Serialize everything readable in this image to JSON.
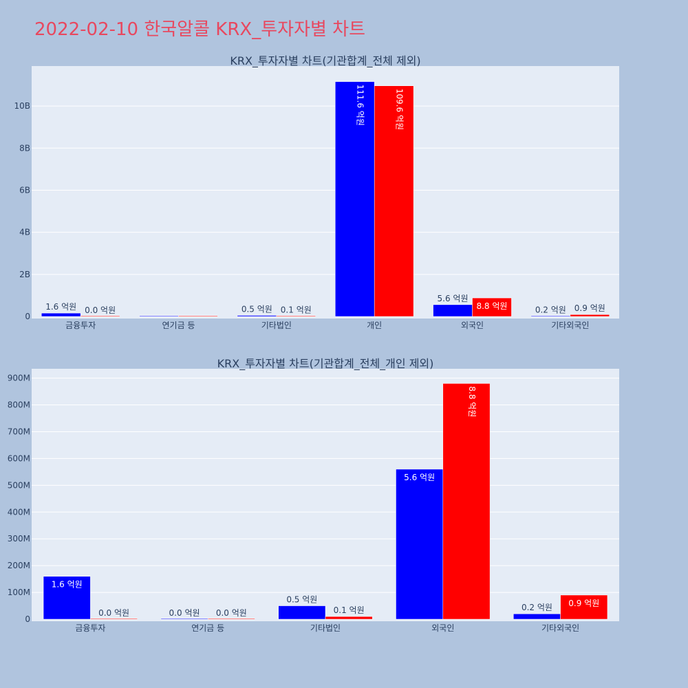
{
  "title": "2022-02-10 한국알콜 KRX_투자자별 차트",
  "colors": {
    "buy": "#0000ff",
    "sell": "#ff0000",
    "plot_bg": "#e5ecf6",
    "page_bg": "#b0c4de"
  },
  "chart_data": [
    {
      "type": "bar",
      "title": "KRX_투자자별 차트(기관합계_전체 제외)",
      "categories": [
        "금융투자",
        "연기금 등",
        "기타법인",
        "개인",
        "외국인",
        "기타외국인"
      ],
      "series": [
        {
          "color": "#0000ff",
          "values": [
            160000000,
            0,
            50000000,
            11160000000,
            560000000,
            20000000
          ],
          "labels": [
            "1.6 억원",
            "",
            "0.5 억원",
            "111.6 억원",
            "5.6 억원",
            "0.2 억원"
          ]
        },
        {
          "color": "#ff0000",
          "values": [
            0,
            0,
            10000000,
            10960000000,
            880000000,
            90000000
          ],
          "labels": [
            "0.0 억원",
            "",
            "0.1 억원",
            "109.6 억원",
            "8.8 억원",
            "0.9 억원"
          ]
        }
      ],
      "ylim": [
        0,
        11900000000
      ],
      "yticks": [
        0,
        2000000000,
        4000000000,
        6000000000,
        8000000000,
        10000000000
      ],
      "yticklabels": [
        "0",
        "2B",
        "4B",
        "6B",
        "8B",
        "10B"
      ]
    },
    {
      "type": "bar",
      "title": "KRX_투자자별 차트(기관합계_전체_개인 제외)",
      "categories": [
        "금융투자",
        "연기금 등",
        "기타법인",
        "외국인",
        "기타외국인"
      ],
      "series": [
        {
          "color": "#0000ff",
          "values": [
            160000000,
            0,
            50000000,
            560000000,
            20000000
          ],
          "labels": [
            "1.6 억원",
            "0.0 억원",
            "0.5 억원",
            "5.6 억원",
            "0.2 억원"
          ]
        },
        {
          "color": "#ff0000",
          "values": [
            0,
            0,
            10000000,
            880000000,
            90000000
          ],
          "labels": [
            "0.0 억원",
            "0.0 억원",
            "0.1 억원",
            "8.8 억원",
            "0.9 억원"
          ]
        }
      ],
      "ylim": [
        0,
        935000000
      ],
      "yticks": [
        0,
        100000000,
        200000000,
        300000000,
        400000000,
        500000000,
        600000000,
        700000000,
        800000000,
        900000000
      ],
      "yticklabels": [
        "0",
        "100M",
        "200M",
        "300M",
        "400M",
        "500M",
        "600M",
        "700M",
        "800M",
        "900M"
      ]
    }
  ]
}
